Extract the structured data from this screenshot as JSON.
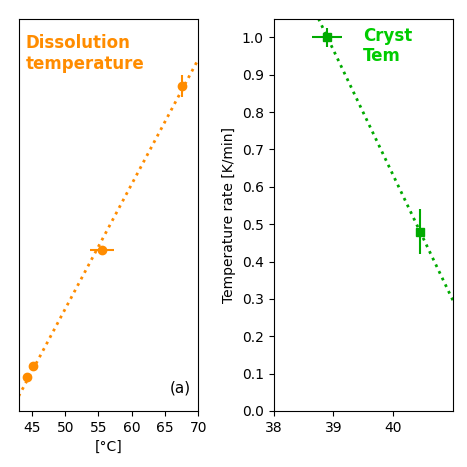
{
  "chart_data": [
    {
      "type": "scatter",
      "xlabel": "[°C]",
      "xlim": [
        43,
        70
      ],
      "ylim": [
        -0.05,
        1.0
      ],
      "xticks": [
        45,
        50,
        55,
        60,
        65,
        70
      ],
      "tick_labels": "x",
      "annotations": [
        {
          "text": "Dissolution\ntemperature",
          "color": "#FF8C00"
        },
        {
          "text": "(a)"
        }
      ],
      "series": [
        {
          "type": "line",
          "line_style": "dotted",
          "color": "#FF8C00",
          "x": [
            43,
            70
          ],
          "values": [
            -0.0105,
            0.8908
          ]
        },
        {
          "type": "scatter",
          "marker": "circle",
          "color": "#FF8C00",
          "x": [
            44.3,
            45.2,
            55.5,
            67.5
          ],
          "values": [
            0.04,
            0.07,
            0.38,
            0.82
          ],
          "xerr": [
            0.4,
            0.3,
            1.8,
            0.5
          ],
          "yerr": [
            0.012,
            0.012,
            0.0,
            0.03
          ]
        }
      ]
    },
    {
      "type": "scatter",
      "ylabel": "Temperature rate [K/min]",
      "xlim": [
        38,
        41
      ],
      "ylim": [
        0.0,
        1.05
      ],
      "xticks": [
        38,
        39,
        40
      ],
      "yticks": [
        0.0,
        0.1,
        0.2,
        0.3,
        0.4,
        0.5,
        0.6,
        0.7,
        0.8,
        0.9,
        1.0
      ],
      "annotations": [
        {
          "text": "Cryst\nTem",
          "color": "#00CC00"
        }
      ],
      "series": [
        {
          "type": "line",
          "line_style": "dotted",
          "color": "#00AA00",
          "x": [
            38.751,
            41
          ],
          "values": [
            1.05,
            0.2955
          ]
        },
        {
          "type": "scatter",
          "marker": "square",
          "color": "#00AA00",
          "x": [
            38.9,
            40.45
          ],
          "values": [
            1.0,
            0.48
          ],
          "xerr": [
            0.25,
            0.04
          ],
          "yerr": [
            0.025,
            0.06
          ]
        }
      ]
    }
  ]
}
